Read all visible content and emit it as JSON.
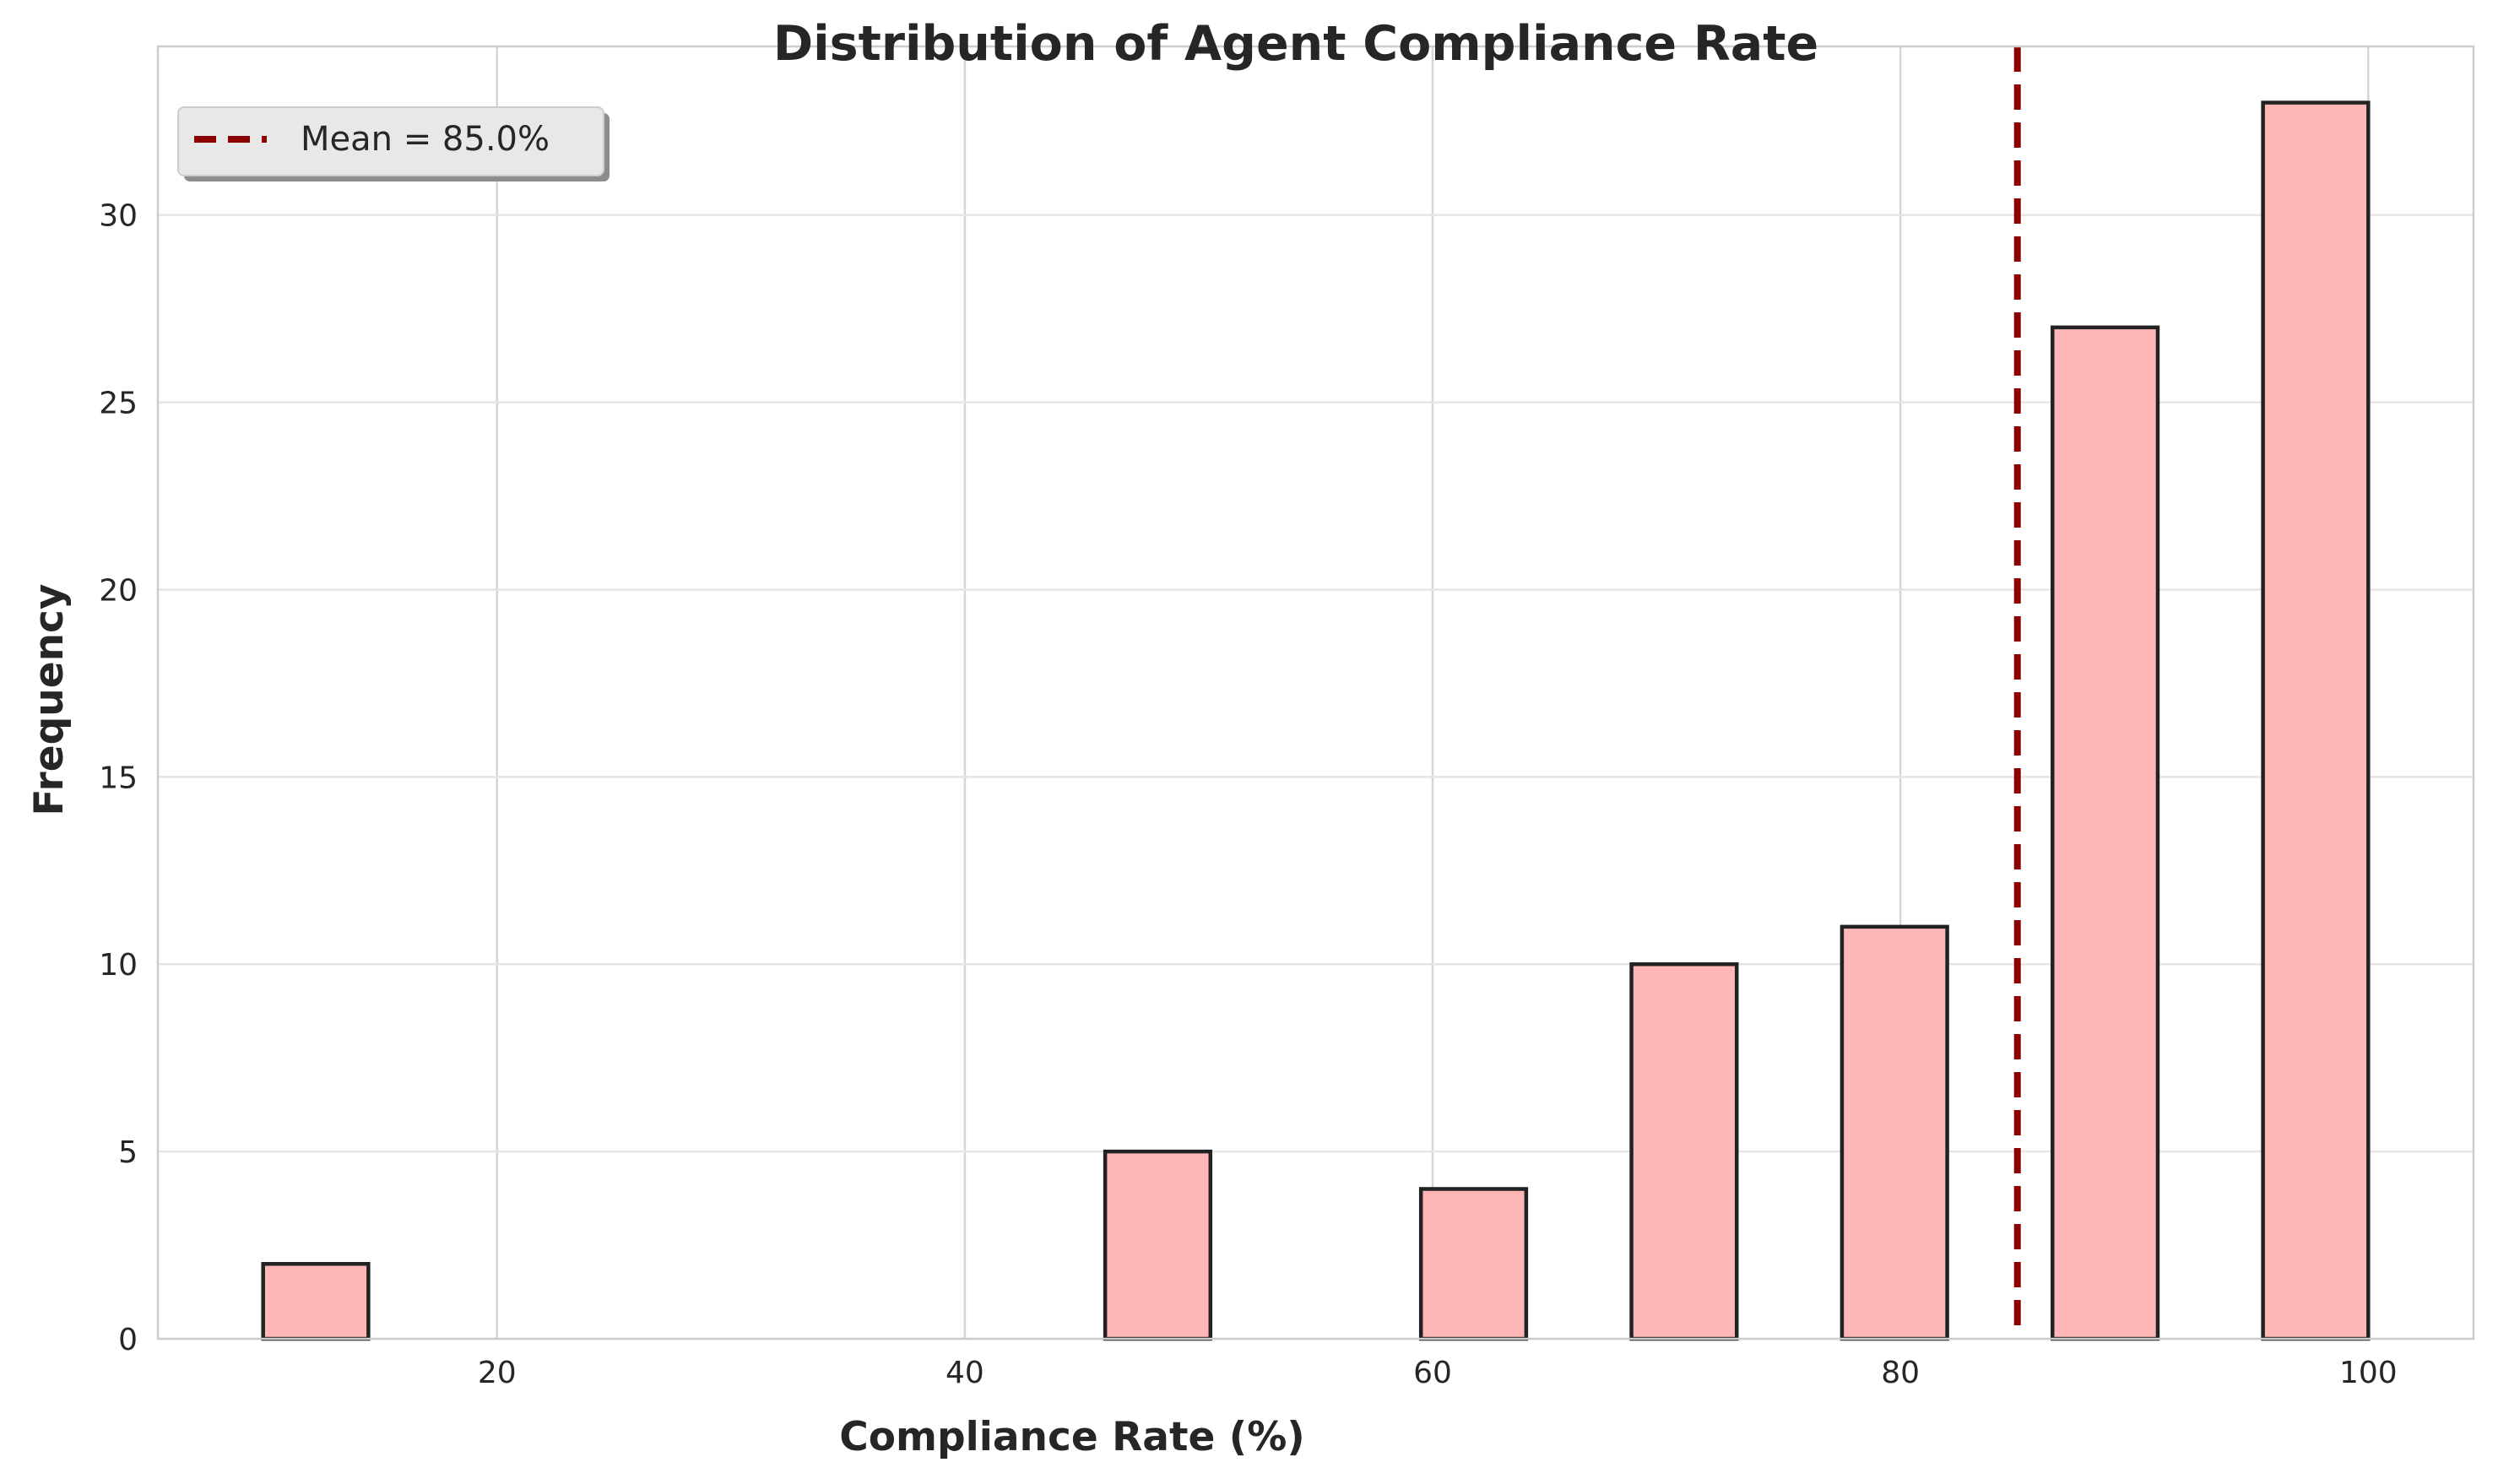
{
  "chart_data": {
    "type": "bar",
    "title": "Distribution of Agent Compliance Rate",
    "xlabel": "Compliance Rate (%)",
    "ylabel": "Frequency",
    "xlim": [
      5.5,
      104.5
    ],
    "ylim": [
      0,
      34.5
    ],
    "xticks": [
      20,
      40,
      60,
      80,
      100
    ],
    "yticks": [
      0,
      5,
      10,
      15,
      20,
      25,
      30
    ],
    "grid": true,
    "bins": [
      {
        "start": 10.0,
        "end": 14.5,
        "value": 2
      },
      {
        "start": 46.0,
        "end": 50.5,
        "value": 5
      },
      {
        "start": 59.5,
        "end": 64.0,
        "value": 4
      },
      {
        "start": 68.5,
        "end": 73.0,
        "value": 10
      },
      {
        "start": 77.5,
        "end": 82.0,
        "value": 11
      },
      {
        "start": 86.5,
        "end": 91.0,
        "value": 27
      },
      {
        "start": 95.5,
        "end": 100.0,
        "value": 33
      }
    ],
    "mean": 85.0,
    "legend": {
      "label": "Mean = 85.0%",
      "placement": "top-left"
    },
    "colors": {
      "bar_fill": "#ffb6b6",
      "bar_edge": "#222222",
      "mean_line": "#8b0000",
      "grid": "#e5e5e5",
      "spine": "#cccccc"
    }
  }
}
